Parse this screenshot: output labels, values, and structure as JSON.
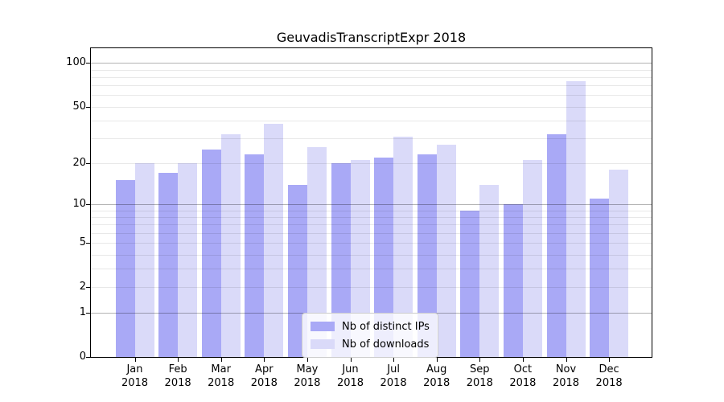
{
  "title": "GeuvadisTranscriptExpr 2018",
  "chart_data": {
    "type": "bar",
    "title": "GeuvadisTranscriptExpr 2018",
    "categories": [
      "Jan 2018",
      "Feb 2018",
      "Mar 2018",
      "Apr 2018",
      "May 2018",
      "Jun 2018",
      "Jul 2018",
      "Aug 2018",
      "Sep 2018",
      "Oct 2018",
      "Nov 2018",
      "Dec 2018"
    ],
    "series": [
      {
        "name": "Nb of distinct IPs",
        "color": "#a9a9f6",
        "values": [
          15,
          17,
          25,
          23,
          14,
          20,
          22,
          23,
          9,
          10,
          32,
          11
        ]
      },
      {
        "name": "Nb of downloads",
        "color": "#dadaf9",
        "values": [
          20,
          20,
          32,
          38,
          26,
          21,
          31,
          27,
          14,
          21,
          75,
          18
        ]
      }
    ],
    "xlabel": "",
    "ylabel": "",
    "yscale": "log-like (position ~ log10(value+1))",
    "y_ticks": [
      0,
      1,
      2,
      5,
      10,
      20,
      50,
      100
    ],
    "y_major_gridlines": [
      1,
      10,
      100
    ],
    "y_minor_gridlines": [
      2,
      3,
      4,
      5,
      6,
      7,
      8,
      9,
      20,
      30,
      40,
      50,
      60,
      70,
      80,
      90
    ],
    "ylim": [
      0,
      126
    ],
    "grid": "horizontal major + minor",
    "legend_position": "lower center"
  }
}
